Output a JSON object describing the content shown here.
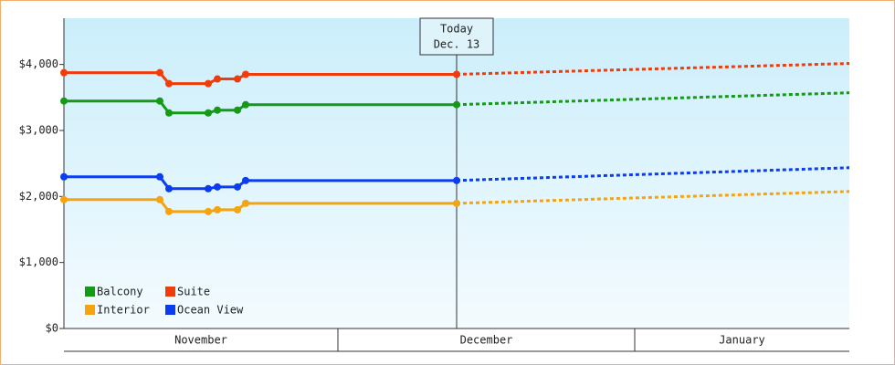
{
  "chart_data": {
    "type": "line",
    "ylim": [
      0,
      4700
    ],
    "yticks": [
      {
        "value": 0,
        "label": "$0"
      },
      {
        "value": 1000,
        "label": "$1,000"
      },
      {
        "value": 2000,
        "label": "$2,000"
      },
      {
        "value": 3000,
        "label": "$3,000"
      },
      {
        "value": 4000,
        "label": "$4,000"
      }
    ],
    "xlim": [
      0,
      86
    ],
    "months": [
      {
        "label": "November",
        "range": [
          0,
          30
        ]
      },
      {
        "label": "December",
        "range": [
          30,
          62.5
        ]
      },
      {
        "label": "January",
        "range": [
          62.5,
          86
        ]
      }
    ],
    "x": [
      0,
      10.5,
      11.5,
      15.8,
      16.8,
      19,
      19.9,
      43
    ],
    "forecast_x": [
      43,
      86
    ],
    "annotation": {
      "x": 43,
      "lines": [
        "Today",
        "Dec. 13"
      ]
    },
    "series": [
      {
        "name": "Balcony",
        "color": "#149a14",
        "values": [
          3446,
          3446,
          3266,
          3266,
          3308,
          3308,
          3391,
          3391
        ],
        "forecast_values": [
          3391,
          3571
        ]
      },
      {
        "name": "Suite",
        "color": "#f03c0a",
        "values": [
          3875,
          3875,
          3710,
          3710,
          3780,
          3780,
          3850,
          3850
        ],
        "forecast_values": [
          3850,
          4015
        ]
      },
      {
        "name": "Interior",
        "color": "#f5a30f",
        "values": [
          1952,
          1952,
          1772,
          1772,
          1799,
          1799,
          1896,
          1896
        ],
        "forecast_values": [
          1896,
          2076
        ]
      },
      {
        "name": "Ocean View",
        "color": "#0a3cf0",
        "values": [
          2298,
          2298,
          2118,
          2118,
          2145,
          2145,
          2242,
          2242
        ],
        "forecast_values": [
          2242,
          2436
        ]
      }
    ]
  }
}
